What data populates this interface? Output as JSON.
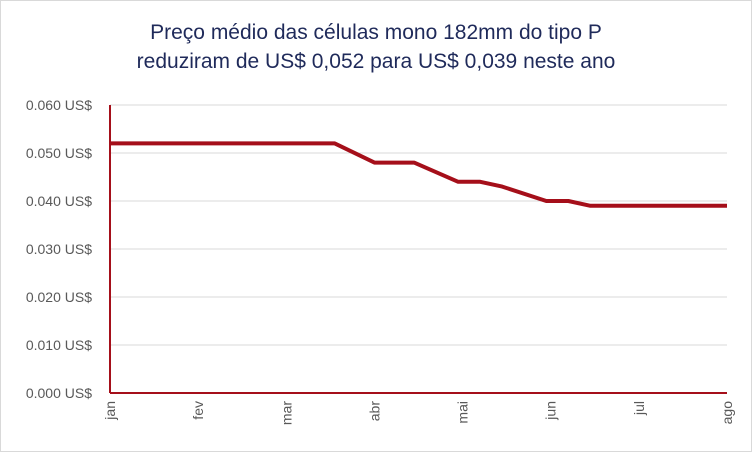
{
  "chart_data": {
    "type": "line",
    "title_lines": [
      "Preço médio das células mono 182mm do tipo P",
      "reduziram de US$ 0,052 para US$ 0,039 neste ano"
    ],
    "xlabel": "",
    "ylabel": "",
    "x_tick_labels": [
      "jan",
      "fev",
      "mar",
      "abr",
      "mai",
      "jun",
      "jul",
      "ago"
    ],
    "y_tick_labels": [
      "0.000 US$",
      "0.010 US$",
      "0.020 US$",
      "0.030 US$",
      "0.040 US$",
      "0.050 US$",
      "0.060 US$"
    ],
    "y_ticks": [
      0,
      0.01,
      0.02,
      0.03,
      0.04,
      0.05,
      0.06
    ],
    "ylim": [
      0,
      0.06
    ],
    "xlim": [
      0,
      7
    ],
    "grid": true,
    "line_color": "#a50f1a",
    "series": [
      {
        "x": [
          0,
          2.55,
          3.0,
          3.45,
          3.95,
          4.2,
          4.45,
          4.95,
          5.2,
          5.45,
          7.0
        ],
        "values": [
          0.052,
          0.052,
          0.048,
          0.048,
          0.044,
          0.044,
          0.043,
          0.04,
          0.04,
          0.039,
          0.039
        ]
      }
    ]
  }
}
